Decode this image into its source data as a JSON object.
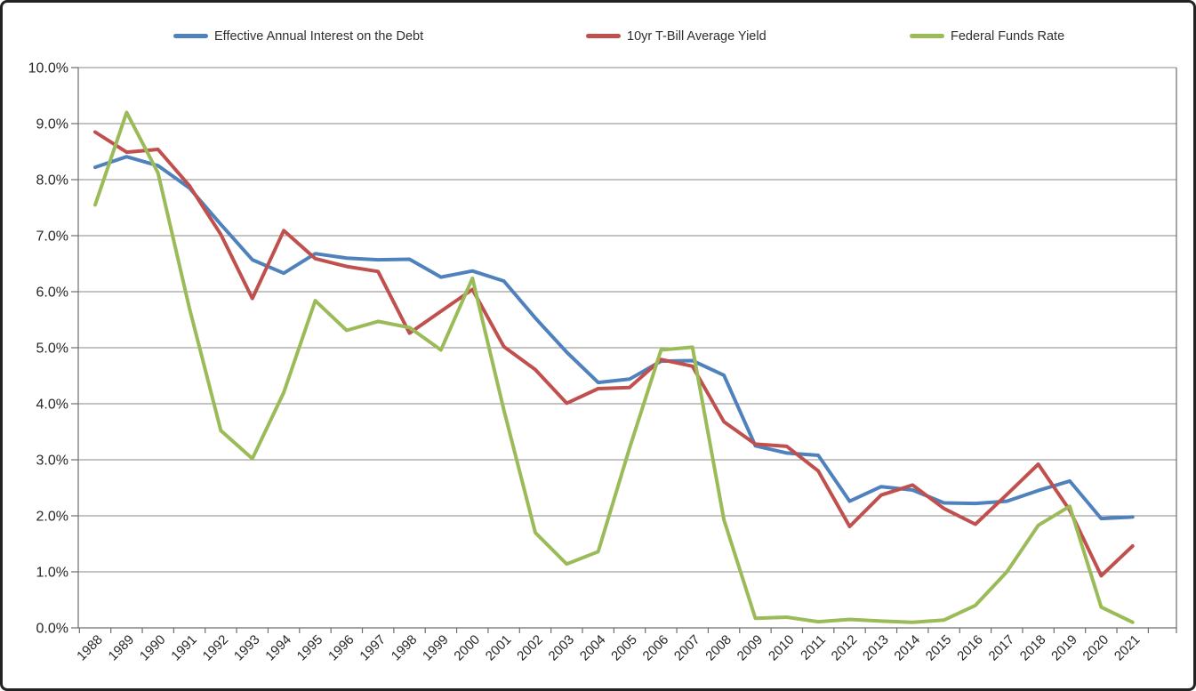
{
  "chart_data": {
    "type": "line",
    "categories": [
      "1988",
      "1989",
      "1990",
      "1991",
      "1992",
      "1993",
      "1994",
      "1995",
      "1996",
      "1997",
      "1998",
      "1999",
      "2000",
      "2001",
      "2002",
      "2003",
      "2004",
      "2005",
      "2006",
      "2007",
      "2008",
      "2009",
      "2010",
      "2011",
      "2012",
      "2013",
      "2014",
      "2015",
      "2016",
      "2017",
      "2018",
      "2019",
      "2020",
      "2021"
    ],
    "series": [
      {
        "name": "Effective Annual Interest on the Debt",
        "color": "#4F81BD",
        "values": [
          8.22,
          8.41,
          8.25,
          7.85,
          7.2,
          6.57,
          6.33,
          6.68,
          6.6,
          6.57,
          6.58,
          6.26,
          6.37,
          6.19,
          5.53,
          4.92,
          4.38,
          4.44,
          4.76,
          4.77,
          4.51,
          3.25,
          3.12,
          3.08,
          2.26,
          2.52,
          2.46,
          2.23,
          2.22,
          2.26,
          2.45,
          2.62,
          1.95,
          1.98
        ]
      },
      {
        "name": "10yr T-Bill Average Yield",
        "color": "#C0504D",
        "values": [
          8.85,
          8.49,
          8.54,
          7.89,
          7.02,
          5.88,
          7.09,
          6.59,
          6.45,
          6.36,
          5.26,
          5.65,
          6.04,
          5.02,
          4.61,
          4.01,
          4.27,
          4.29,
          4.79,
          4.67,
          3.68,
          3.28,
          3.24,
          2.8,
          1.81,
          2.37,
          2.55,
          2.13,
          1.85,
          2.38,
          2.92,
          2.1,
          0.93,
          1.46
        ]
      },
      {
        "name": "Federal Funds Rate",
        "color": "#9BBB59",
        "values": [
          7.55,
          9.2,
          8.12,
          5.7,
          3.52,
          3.02,
          4.2,
          5.84,
          5.31,
          5.47,
          5.36,
          4.96,
          6.24,
          3.89,
          1.7,
          1.14,
          1.36,
          3.21,
          4.96,
          5.01,
          1.93,
          0.17,
          0.19,
          0.11,
          0.15,
          0.12,
          0.1,
          0.14,
          0.4,
          1.0,
          1.83,
          2.17,
          0.37,
          0.1
        ]
      }
    ],
    "ylim": [
      0,
      10
    ],
    "ytick_step": 1,
    "ytick_labels": [
      "0.0%",
      "1.0%",
      "2.0%",
      "3.0%",
      "4.0%",
      "5.0%",
      "6.0%",
      "7.0%",
      "8.0%",
      "9.0%",
      "10.0%"
    ],
    "grid": "horizontal",
    "legend_position": "top"
  },
  "colors": {
    "gridline": "#8a8a8a",
    "axis": "#6e6e6e",
    "text": "#262626",
    "frame_border": "#222222",
    "background": "#ffffff"
  }
}
